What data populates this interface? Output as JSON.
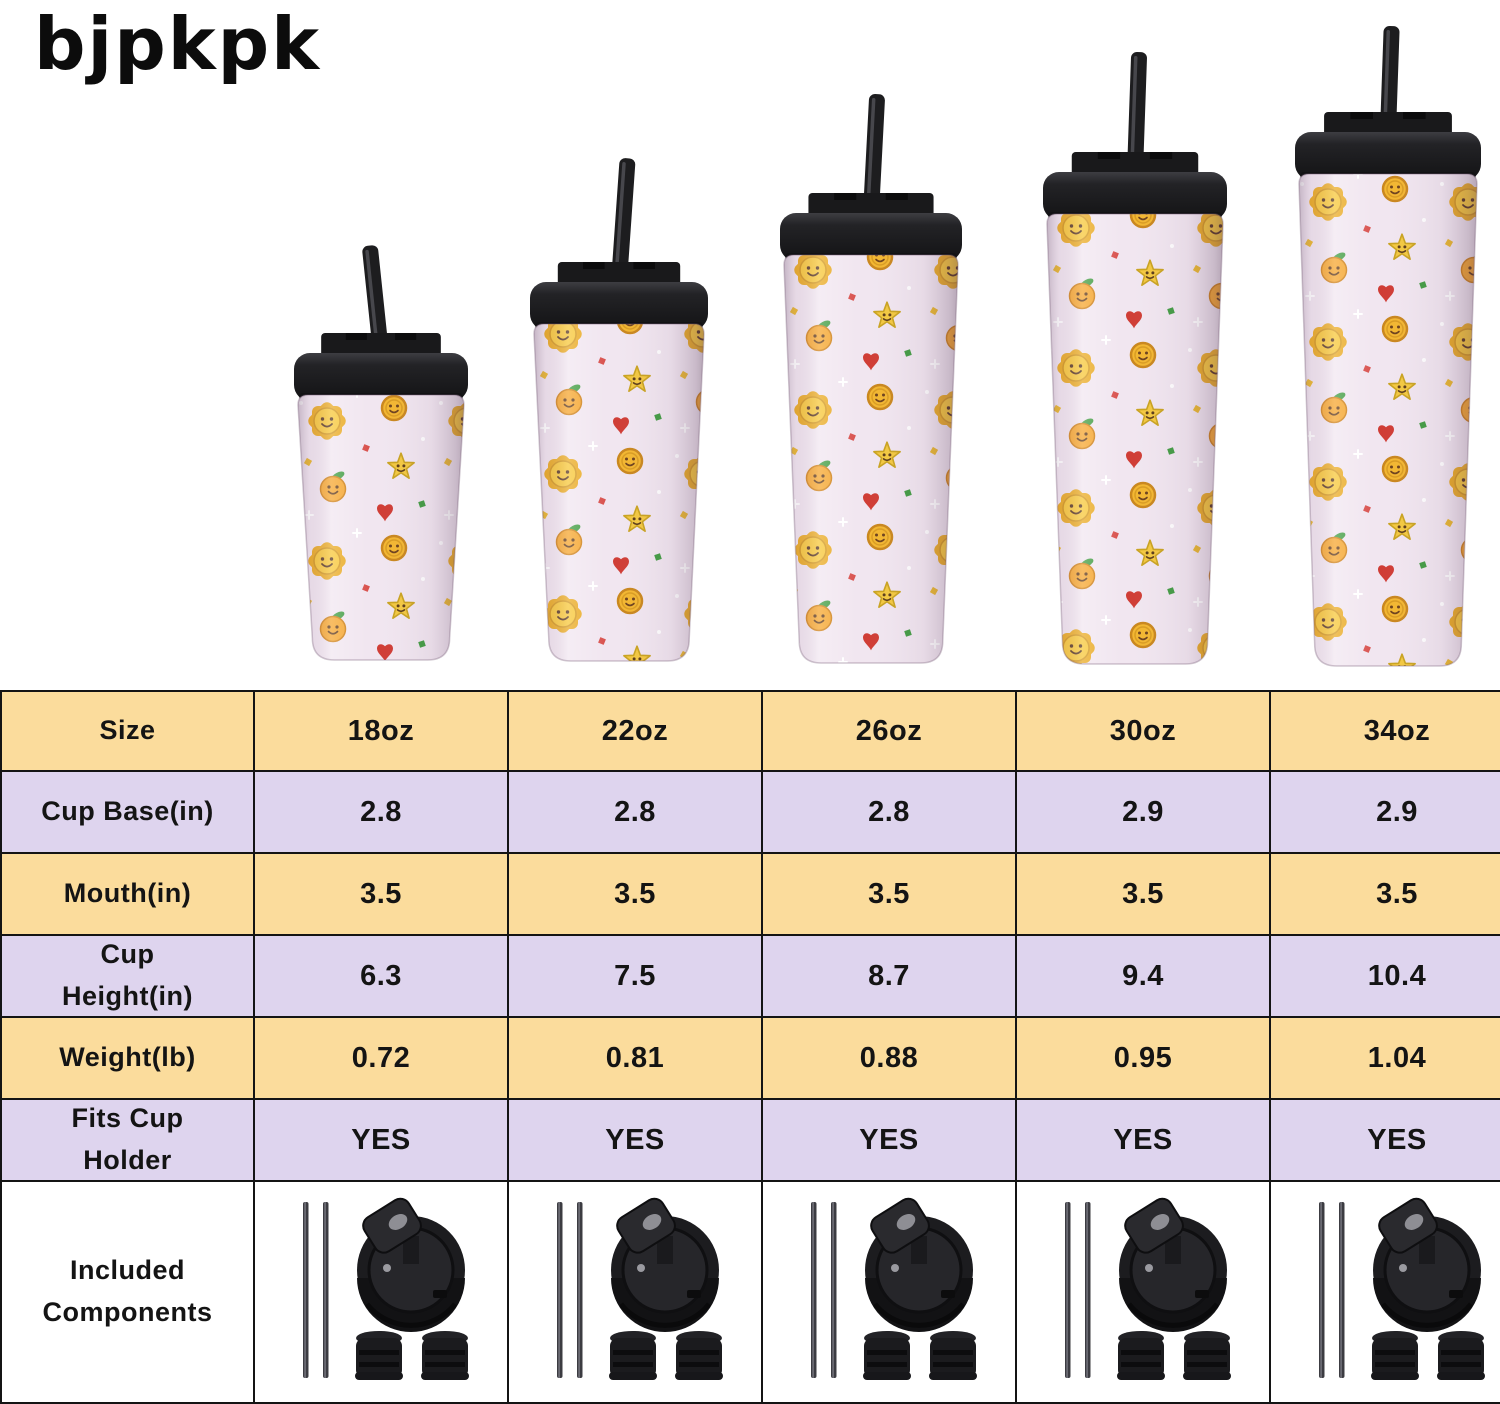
{
  "brand": {
    "logo": "bjpkpk"
  },
  "table": {
    "rows": [
      {
        "label": "Size",
        "values": [
          "18oz",
          "22oz",
          "26oz",
          "30oz",
          "34oz"
        ]
      },
      {
        "label": "Cup Base(in)",
        "values": [
          "2.8",
          "2.8",
          "2.8",
          "2.9",
          "2.9"
        ]
      },
      {
        "label": "Mouth(in)",
        "values": [
          "3.5",
          "3.5",
          "3.5",
          "3.5",
          "3.5"
        ]
      },
      {
        "label": "Cup Height(in)",
        "values": [
          "6.3",
          "7.5",
          "8.7",
          "9.4",
          "10.4"
        ]
      },
      {
        "label": "Weight(lb)",
        "values": [
          "0.72",
          "0.81",
          "0.88",
          "0.95",
          "1.04"
        ]
      },
      {
        "label": "Fits Cup Holder",
        "values": [
          "YES",
          "YES",
          "YES",
          "YES",
          "YES"
        ]
      },
      {
        "label": "Included Components",
        "component_icons": [
          "metal-straws-icon",
          "flip-lid-icon",
          "straw-stoppers-icon"
        ]
      }
    ]
  },
  "colors": {
    "row_cream": "#fbdc9c",
    "row_lavender": "#ded4ee",
    "row_white": "#ffffff",
    "table_border": "#141414",
    "tumbler_body": "#f1e6f0",
    "lid_black": "#1c1c1e",
    "pattern_yellow": "#f7c634",
    "text": "#141414"
  }
}
